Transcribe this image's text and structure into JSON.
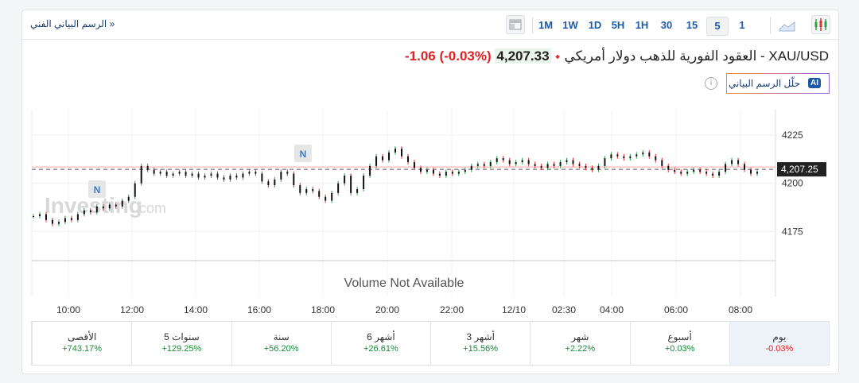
{
  "toolbar": {
    "technical_link": "الرسم البياني الفني »",
    "timeframes": [
      "1M",
      "1W",
      "1D",
      "5H",
      "1H",
      "30",
      "15",
      "5",
      "1"
    ],
    "selected": "5",
    "icons": [
      "layout-icon",
      "area-chart-icon",
      "candlestick-icon"
    ]
  },
  "header": {
    "symbol": "XAU/USD - العقود الفورية للذهب دولار أمريكي",
    "price": "4,207.33",
    "change": "-1.06",
    "change_pct": "(-0.03%)",
    "ai_label": "حلّل الرسم البياني",
    "ai_badge": "AI"
  },
  "colors": {
    "up": "#2e9e48",
    "down": "#d9322a",
    "accent": "#1c5aa7"
  },
  "chart_data": {
    "type": "candlestick",
    "watermark": "Investing.com",
    "volume_note": "Volume Not Available",
    "yticks": [
      4225,
      4200,
      4175
    ],
    "ylim": [
      4162,
      4232
    ],
    "current_price": "4,207.25",
    "current_value": 4207.25,
    "reference_line": 4208.5,
    "xticks": [
      "10:00",
      "12:00",
      "14:00",
      "16:00",
      "18:00",
      "20:00",
      "22:00",
      "12/10",
      "02:30",
      "04:00",
      "06:00",
      "08:00"
    ],
    "news_markers": [
      "N",
      "N"
    ],
    "closes": [
      4183,
      4184,
      4181,
      4179,
      4180,
      4182,
      4181,
      4184,
      4186,
      4185,
      4188,
      4187,
      4189,
      4188,
      4191,
      4193,
      4200,
      4209,
      4207,
      4205,
      4206,
      4204,
      4205,
      4206,
      4204,
      4205,
      4203,
      4204,
      4205,
      4203,
      4202,
      4204,
      4203,
      4205,
      4206,
      4205,
      4201,
      4199,
      4202,
      4206,
      4205,
      4199,
      4195,
      4197,
      4196,
      4193,
      4191,
      4195,
      4200,
      4204,
      4195,
      4197,
      4204,
      4209,
      4214,
      4212,
      4216,
      4218,
      4214,
      4211,
      4208,
      4206,
      4207,
      4205,
      4204,
      4206,
      4205,
      4206,
      4207,
      4209,
      4210,
      4209,
      4211,
      4213,
      4212,
      4210,
      4211,
      4212,
      4210,
      4209,
      4208,
      4210,
      4209,
      4211,
      4212,
      4210,
      4209,
      4208,
      4207,
      4209,
      4213,
      4215,
      4214,
      4213,
      4214,
      4215,
      4216,
      4214,
      4212,
      4209,
      4207,
      4206,
      4205,
      4206,
      4207,
      4206,
      4205,
      4204,
      4206,
      4210,
      4212,
      4210,
      4207,
      4205,
      4206
    ]
  },
  "periods": [
    {
      "label": "يوم",
      "value": "-0.03%"
    },
    {
      "label": "أسبوع",
      "value": "+0.03%"
    },
    {
      "label": "شهر",
      "value": "+2.22%"
    },
    {
      "label": "3 أشهر",
      "value": "+15.56%"
    },
    {
      "label": "6 أشهر",
      "value": "+26.61%"
    },
    {
      "label": "سنة",
      "value": "+56.20%"
    },
    {
      "label": "5 سنوات",
      "value": "+129.25%"
    },
    {
      "label": "الأقصى",
      "value": "+743.17%"
    }
  ]
}
